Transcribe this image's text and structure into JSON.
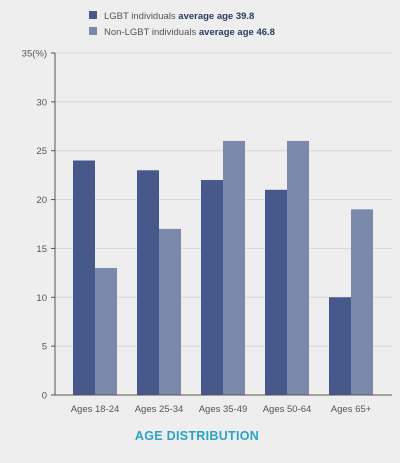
{
  "chart_data": {
    "type": "bar",
    "title": "AGE DISTRIBUTION",
    "xlabel": "",
    "ylabel": "(%)",
    "categories": [
      "Ages 18-24",
      "Ages 25-34",
      "Ages 35-49",
      "Ages 50-64",
      "Ages 65+"
    ],
    "series": [
      {
        "name": "LGBT individuals",
        "note": "average age 39.8",
        "color": "#46598a",
        "values": [
          24,
          23,
          22,
          21,
          10
        ]
      },
      {
        "name": "Non-LGBT individuals",
        "note": "average age 46.8",
        "color": "#7b89aa",
        "values": [
          13,
          17,
          26,
          26,
          19
        ]
      }
    ],
    "ylim": [
      0,
      35
    ],
    "yticks": [
      0,
      5,
      10,
      15,
      20,
      25,
      30,
      35
    ],
    "ytick_labels": [
      "0",
      "5",
      "10",
      "15",
      "20",
      "25",
      "30",
      "35(%)"
    ],
    "grid": true,
    "legend_position": "top-left",
    "title_position": "bottom",
    "colors": {
      "background": "#eeeeee",
      "grid": "#d6d6d6",
      "axis": "#555555",
      "tick_text": "#555555",
      "legend_text": "#555555",
      "legend_note": "#2b3a63",
      "title": "#2ca3c6"
    }
  }
}
